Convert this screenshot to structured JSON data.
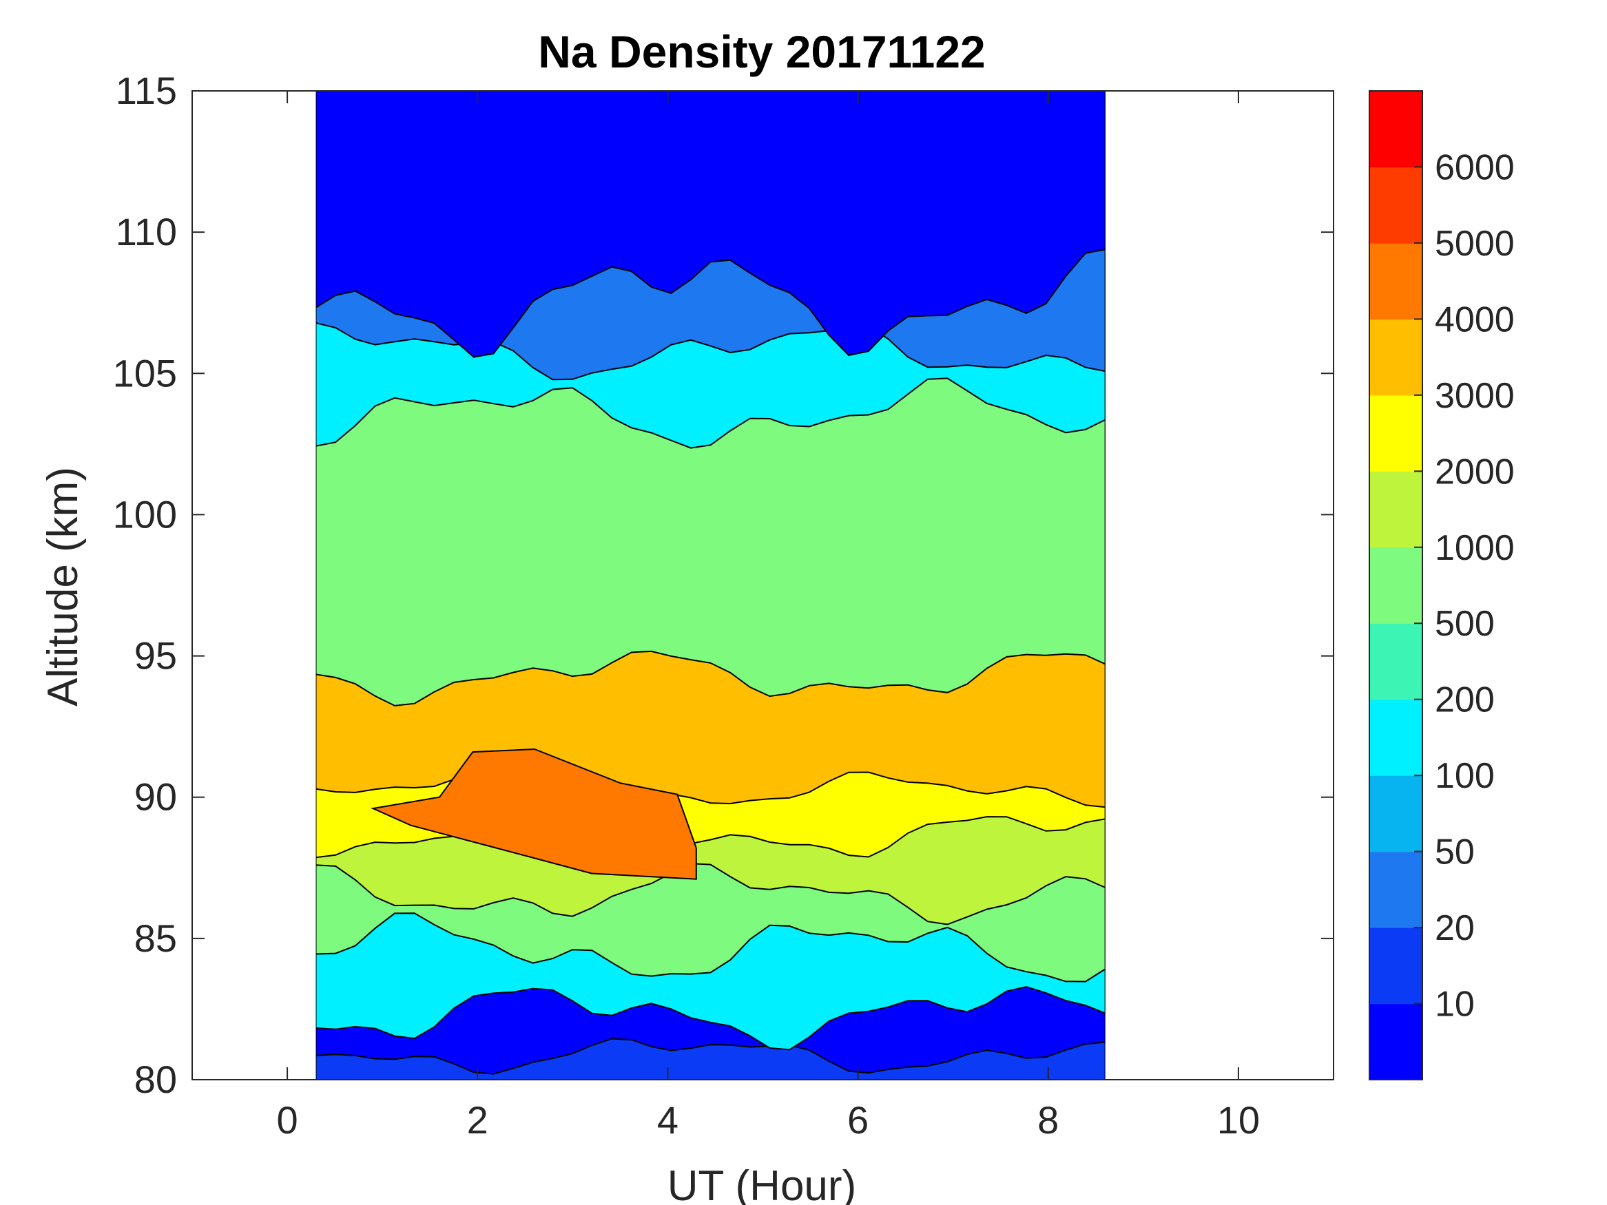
{
  "chart_data": {
    "type": "heatmap",
    "title": "Na Density 20171122",
    "xlabel": "UT (Hour)",
    "ylabel": "Altitude (km)",
    "xlim": [
      -1,
      11
    ],
    "ylim": [
      80,
      115
    ],
    "x_ticks": [
      0,
      2,
      4,
      6,
      8,
      10
    ],
    "y_ticks": [
      80,
      85,
      90,
      95,
      100,
      105,
      110,
      115
    ],
    "data_x_range": [
      0.3,
      8.6
    ],
    "colorbar": {
      "levels": [
        "10",
        "20",
        "50",
        "100",
        "200",
        "500",
        "1000",
        "2000",
        "3000",
        "4000",
        "5000",
        "6000"
      ],
      "colors": [
        "#0000ff",
        "#0b3bf5",
        "#1e78f0",
        "#08b4f0",
        "#00f0ff",
        "#3cf5b4",
        "#7efa7e",
        "#bef53c",
        "#ffff00",
        "#ffbe00",
        "#ff7800",
        "#ff3c00",
        "#ff0000"
      ]
    },
    "bands": [
      {
        "name": "lowest-region",
        "level_index": 1
      },
      {
        "name": "bottom-dark-blue",
        "level_index": 0
      },
      {
        "name": "bottom-cyan",
        "level_index": 4
      },
      {
        "name": "lower-edge-green",
        "level_index": 6
      },
      {
        "name": "lower-lime",
        "level_index": 7
      },
      {
        "name": "yellow-layer",
        "level_index": 8
      },
      {
        "name": "orange-layer",
        "level_index": 9
      },
      {
        "name": "peak-layer",
        "level_index": 10
      },
      {
        "name": "upper-green",
        "level_index": 6
      },
      {
        "name": "upper-cyan",
        "level_index": 4
      },
      {
        "name": "top-blue",
        "level_index": 2
      },
      {
        "name": "top-dark-blue",
        "level_index": 0
      }
    ]
  }
}
